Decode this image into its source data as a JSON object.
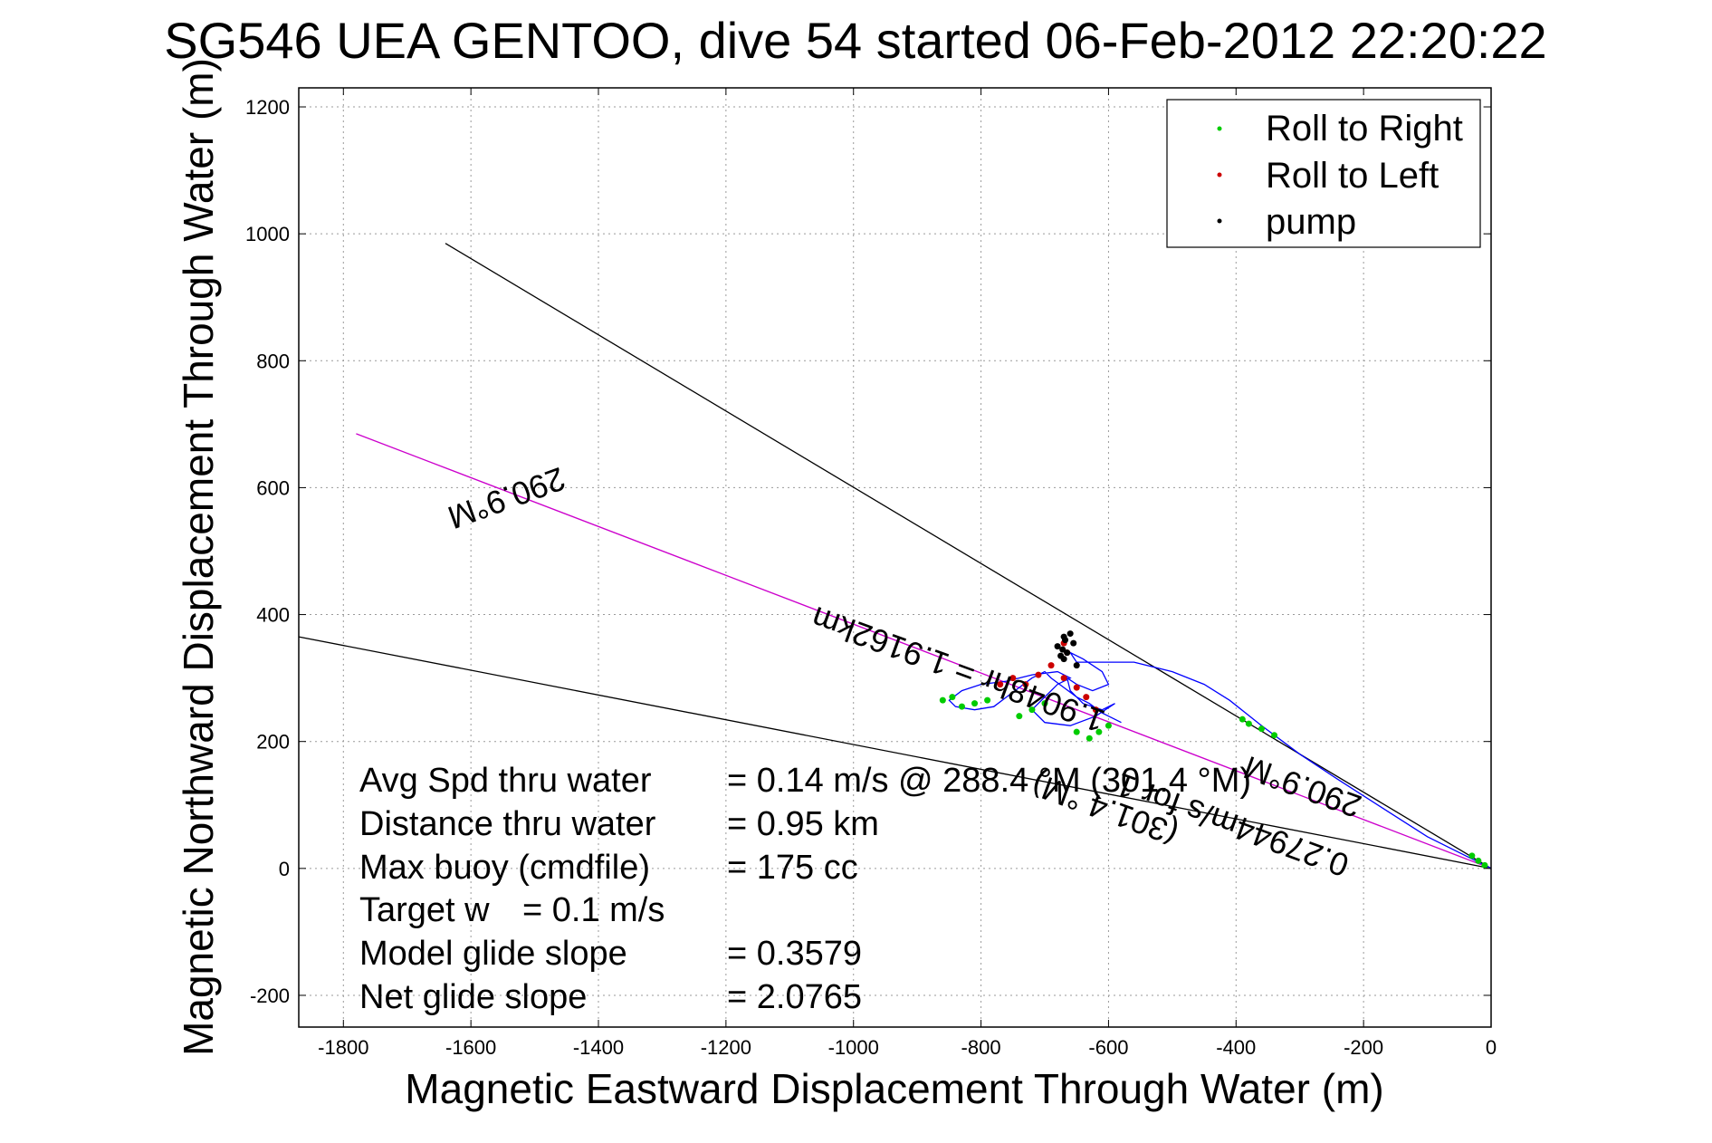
{
  "chart_data": {
    "type": "scatter",
    "title": "SG546 UEA GENTOO, dive 54 started 06-Feb-2012 22:20:22",
    "xlabel": "Magnetic Eastward Displacement Through Water (m)",
    "ylabel": "Magnetic Northward Displacement Through Water (m)",
    "xlim": [
      -1870,
      0
    ],
    "ylim": [
      -250,
      1230
    ],
    "xticks": [
      -1800,
      -1600,
      -1400,
      -1200,
      -1000,
      -800,
      -600,
      -400,
      -200,
      0
    ],
    "yticks": [
      -200,
      0,
      200,
      400,
      600,
      800,
      1000,
      1200
    ],
    "grid": true,
    "legend": {
      "placement": "top-right",
      "entries": [
        {
          "label": "Roll to Right",
          "color": "#00cc00"
        },
        {
          "label": "Roll to Left",
          "color": "#cc0000"
        },
        {
          "label": "pump",
          "color": "#000000"
        }
      ]
    },
    "reference_lines": [
      {
        "name": "upper-bound",
        "color": "#000000",
        "x": [
          -1640,
          0
        ],
        "y": [
          985,
          0
        ]
      },
      {
        "name": "lower-bound",
        "color": "#000000",
        "x": [
          -1870,
          0
        ],
        "y": [
          365,
          0
        ]
      },
      {
        "name": "heading-290.9",
        "color": "#cc00cc",
        "x": [
          -1780,
          0
        ],
        "y": [
          685,
          0
        ]
      }
    ],
    "track": {
      "color": "#0000ff",
      "x": [
        0,
        -40,
        -100,
        -170,
        -240,
        -300,
        -360,
        -410,
        -450,
        -500,
        -560,
        -610,
        -650,
        -660,
        -640,
        -610,
        -600,
        -625,
        -650,
        -665,
        -660,
        -640,
        -610,
        -590,
        -620,
        -660,
        -700,
        -720,
        -700,
        -680,
        -660,
        -680,
        -720,
        -760,
        -800,
        -830,
        -850,
        -840,
        -810,
        -780,
        -760,
        -740,
        -720,
        -700,
        -690,
        -670,
        -650,
        -630,
        -610,
        -600,
        -580
      ],
      "y": [
        0,
        20,
        50,
        95,
        140,
        180,
        225,
        265,
        290,
        310,
        325,
        325,
        325,
        340,
        330,
        310,
        290,
        280,
        290,
        300,
        280,
        260,
        250,
        260,
        240,
        225,
        230,
        250,
        270,
        290,
        300,
        310,
        305,
        295,
        290,
        280,
        265,
        255,
        250,
        255,
        270,
        285,
        300,
        310,
        300,
        285,
        270,
        260,
        245,
        240,
        230
      ]
    },
    "roll_right": {
      "color": "#00cc00",
      "x": [
        -10,
        -20,
        -30,
        -340,
        -360,
        -380,
        -390,
        -600,
        -615,
        -630,
        -650,
        -700,
        -720,
        -740,
        -790,
        -810,
        -830,
        -845,
        -860
      ],
      "y": [
        5,
        12,
        20,
        210,
        220,
        228,
        235,
        225,
        215,
        205,
        215,
        260,
        250,
        240,
        265,
        260,
        255,
        270,
        265
      ]
    },
    "roll_left": {
      "color": "#cc0000",
      "x": [
        -620,
        -635,
        -650,
        -670,
        -690,
        -710,
        -730,
        -750,
        -770,
        -665,
        -670
      ],
      "y": [
        250,
        270,
        285,
        300,
        320,
        305,
        290,
        300,
        290,
        340,
        355
      ]
    },
    "pump": {
      "color": "#000000",
      "x": [
        -670,
        -672,
        -668,
        -660,
        -655,
        -665,
        -675,
        -680,
        -670,
        -650
      ],
      "y": [
        330,
        345,
        360,
        370,
        355,
        340,
        335,
        350,
        365,
        320
      ]
    },
    "annotations": [
      {
        "text": "290.9°M",
        "x": -1550,
        "y": 600,
        "rotation": 160
      },
      {
        "text": "290.9°M",
        "x": -290,
        "y": 145,
        "rotation": 200
      },
      {
        "text": "1.9048hr = 1.9162km",
        "x": -830,
        "y": 330,
        "rotation": 200
      },
      {
        "text": "0.27944m/s for 1",
        "x": -400,
        "y": 85,
        "rotation": 200
      },
      {
        "text": "(301.4 °M)",
        "x": -600,
        "y": 110,
        "rotation": 200
      }
    ]
  },
  "stats": [
    {
      "label": "Avg Spd thru water",
      "value": "=  0.14 m/s @ 288.4  °M (301.4 °M)"
    },
    {
      "label": "Distance thru water",
      "value": "=  0.95 km"
    },
    {
      "label": "Max buoy (cmdfile)",
      "value": "= 175 cc"
    },
    {
      "label": "Target w",
      "value": "= 0.1 m/s"
    },
    {
      "label": "Model glide slope",
      "value": "= 0.3579"
    },
    {
      "label": "Net glide slope",
      "value": "= 2.0765"
    }
  ]
}
